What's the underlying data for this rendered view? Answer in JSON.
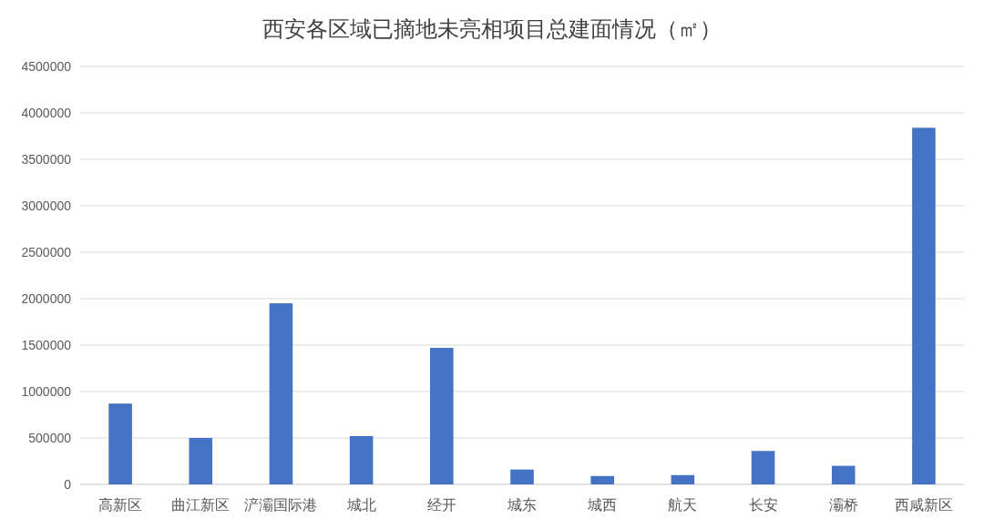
{
  "chart_data": {
    "type": "bar",
    "title": "西安各区域已摘地未亮相项目总建面情况（㎡）",
    "categories": [
      "高新区",
      "曲江新区",
      "浐灞国际港",
      "城北",
      "经开",
      "城东",
      "城西",
      "航天",
      "长安",
      "灞桥",
      "西咸新区"
    ],
    "values": [
      870000,
      500000,
      1950000,
      520000,
      1470000,
      160000,
      90000,
      100000,
      360000,
      200000,
      3840000
    ],
    "color": "#4472c4",
    "ylim": [
      0,
      4500000
    ],
    "yticks": [
      0,
      500000,
      1000000,
      1500000,
      2000000,
      2500000,
      3000000,
      3500000,
      4000000,
      4500000
    ],
    "grid": "y"
  }
}
